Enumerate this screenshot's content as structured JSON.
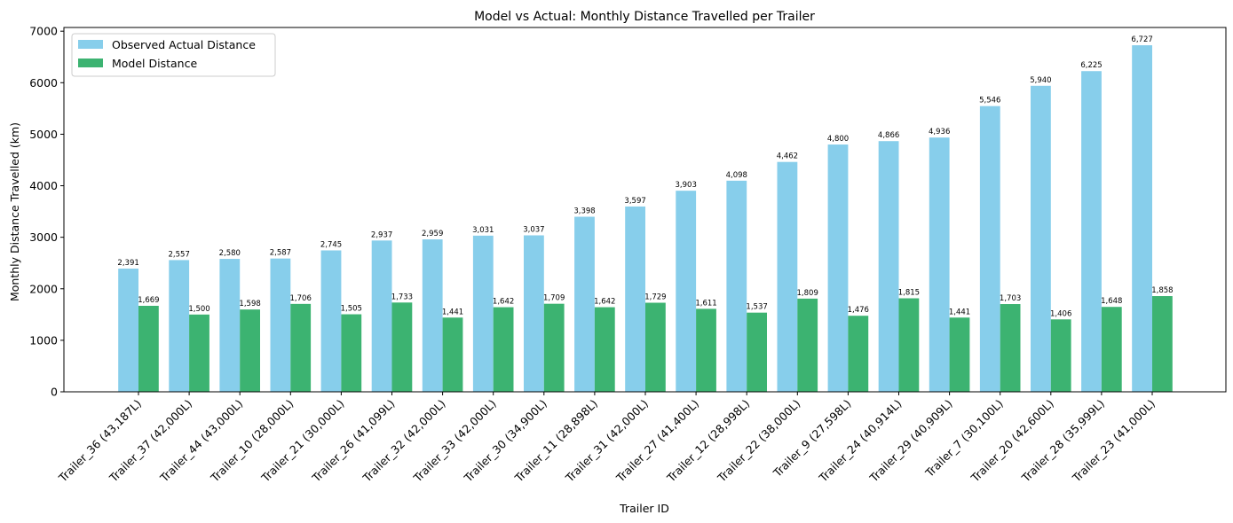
{
  "chart_data": {
    "type": "bar",
    "title": "Model vs Actual: Monthly Distance Travelled per Trailer",
    "xlabel": "Trailer ID",
    "ylabel": "Monthly Distance Travelled (km)",
    "ylim": [
      0,
      7000
    ],
    "yticks": [
      0,
      1000,
      2000,
      3000,
      4000,
      5000,
      6000,
      7000
    ],
    "categories": [
      "Trailer_36 (43,187L)",
      "Trailer_37 (42,000L)",
      "Trailer_44 (43,000L)",
      "Trailer_10 (28,000L)",
      "Trailer_21 (30,000L)",
      "Trailer_26 (41,099L)",
      "Trailer_32 (42,000L)",
      "Trailer_33 (42,000L)",
      "Trailer_30 (34,900L)",
      "Trailer_11 (28,898L)",
      "Trailer_31 (42,000L)",
      "Trailer_27 (41,400L)",
      "Trailer_12 (28,998L)",
      "Trailer_22 (38,000L)",
      "Trailer_9 (27,598L)",
      "Trailer_24 (40,914L)",
      "Trailer_29 (40,909L)",
      "Trailer_7 (30,100L)",
      "Trailer_20 (42,600L)",
      "Trailer_28 (35,999L)",
      "Trailer_23 (41,000L)"
    ],
    "series": [
      {
        "name": "Observed Actual Distance",
        "color": "#87ceeb",
        "values": [
          2391,
          2557,
          2580,
          2587,
          2745,
          2937,
          2959,
          3031,
          3037,
          3398,
          3597,
          3903,
          4098,
          4462,
          4800,
          4866,
          4936,
          5546,
          5940,
          6225,
          6727
        ],
        "labels": [
          "2,391",
          "2,557",
          "2,580",
          "2,587",
          "2,745",
          "2,937",
          "2,959",
          "3,031",
          "3,037",
          "3,398",
          "3,597",
          "3,903",
          "4,098",
          "4,462",
          "4,800",
          "4,866",
          "4,936",
          "5,546",
          "5,940",
          "6,225",
          "6,727"
        ]
      },
      {
        "name": "Model Distance",
        "color": "#3cb371",
        "values": [
          1669,
          1500,
          1598,
          1706,
          1505,
          1733,
          1441,
          1642,
          1709,
          1642,
          1729,
          1611,
          1537,
          1809,
          1476,
          1815,
          1441,
          1703,
          1406,
          1648,
          1858
        ],
        "labels": [
          "1,669",
          "1,500",
          "1,598",
          "1,706",
          "1,505",
          "1,733",
          "1,441",
          "1,642",
          "1,709",
          "1,642",
          "1,729",
          "1,611",
          "1,537",
          "1,809",
          "1,476",
          "1,815",
          "1,441",
          "1,703",
          "1,406",
          "1,648",
          "1,858"
        ]
      }
    ],
    "legend_position": "top-left",
    "grid": false
  }
}
